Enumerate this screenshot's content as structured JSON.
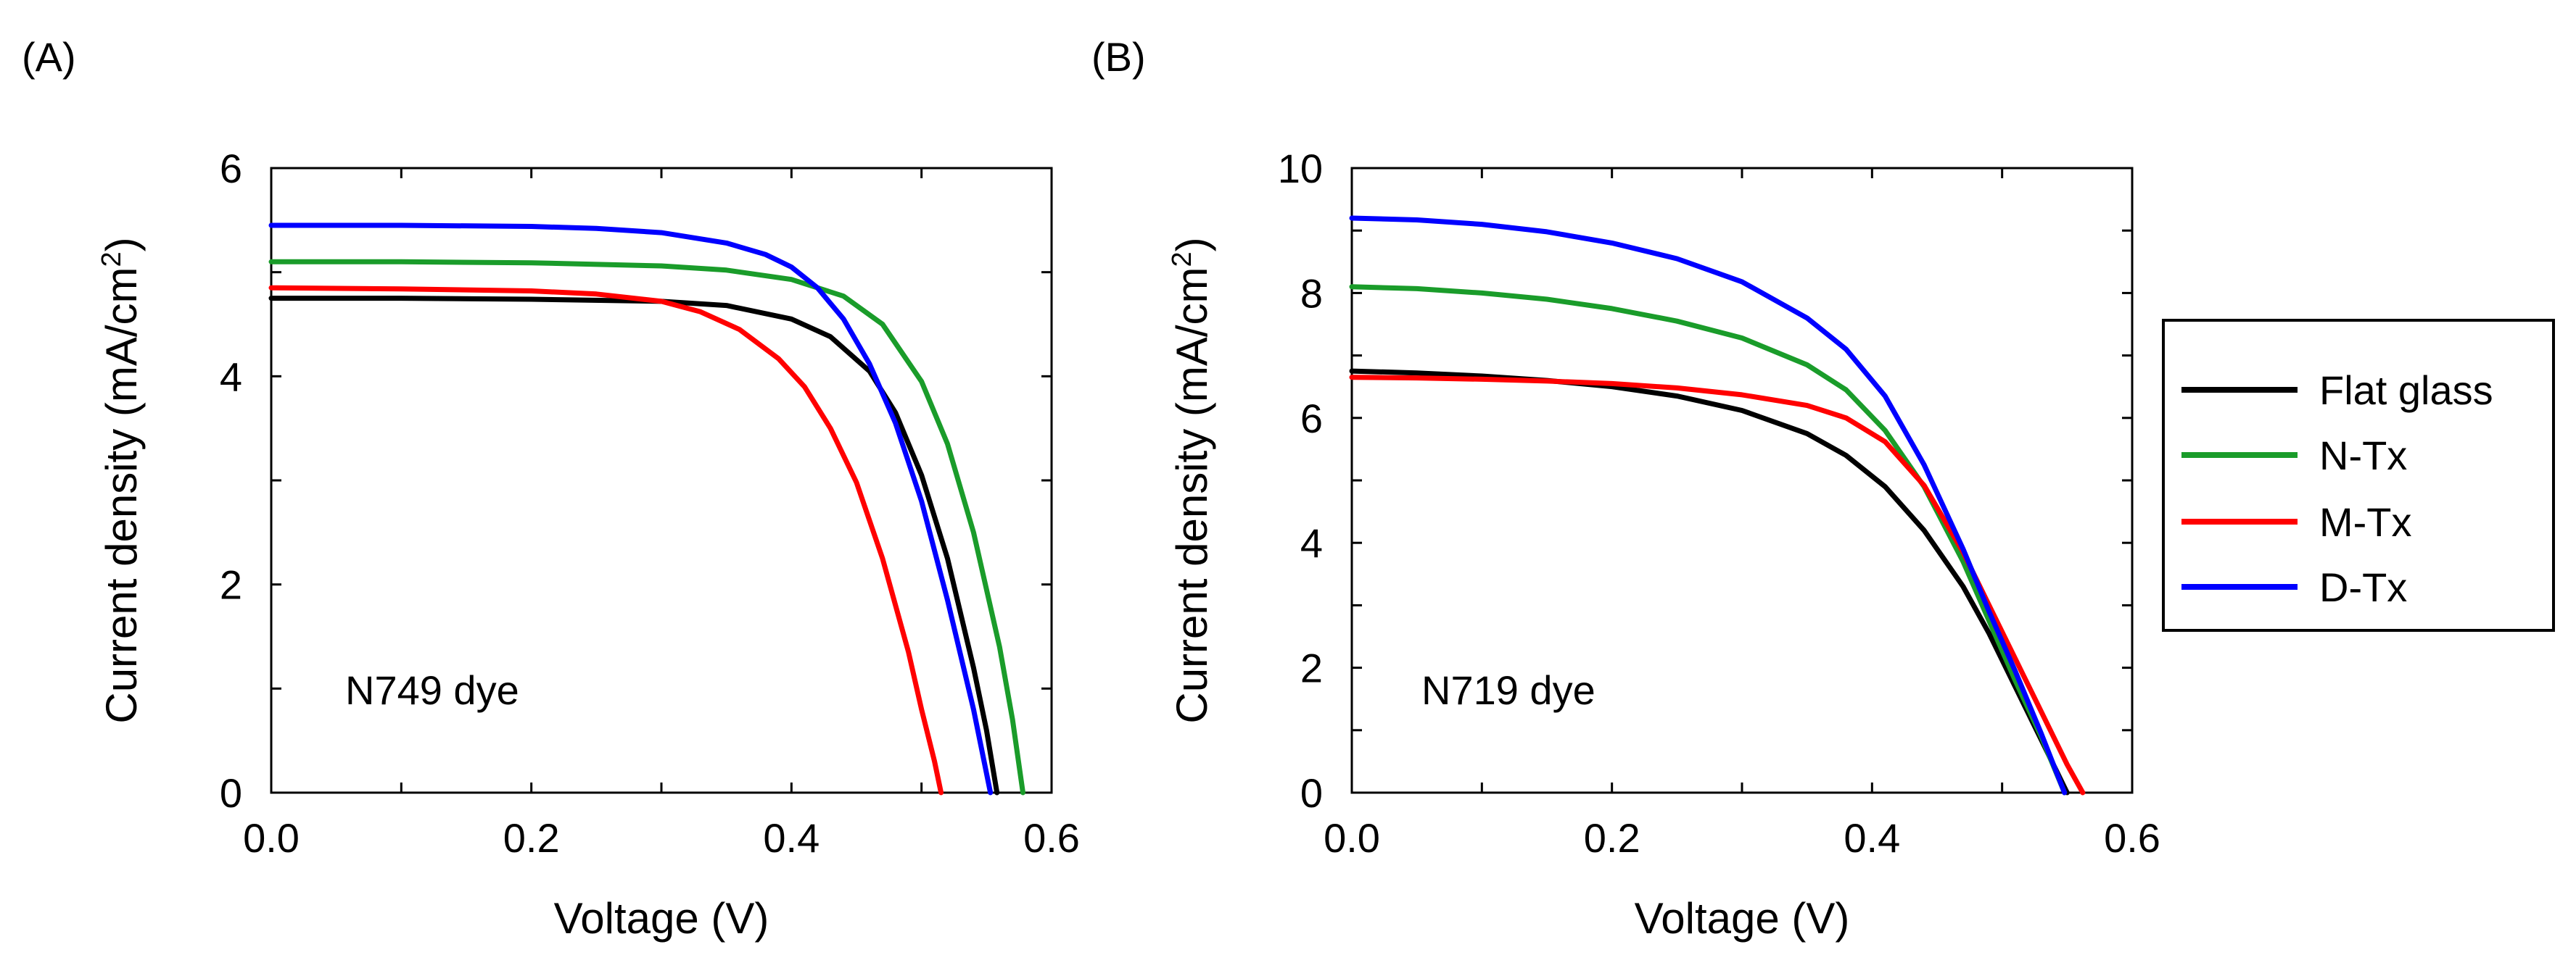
{
  "chart_data": [
    {
      "type": "line",
      "panel_label": "(A)",
      "annotation": "N749 dye",
      "xlabel": "Voltage (V)",
      "ylabel_main": "Current density (mA/cm",
      "ylabel_sup": "2",
      "ylabel_close": ")",
      "xlim": [
        0,
        0.6
      ],
      "ylim": [
        0,
        6
      ],
      "xticks": [
        0,
        0.1,
        0.2,
        0.3,
        0.4,
        0.5,
        0.6
      ],
      "xtick_labels": [
        "0.0",
        "",
        "0.2",
        "",
        "0.4",
        "",
        "0.6"
      ],
      "yticks": [
        0,
        1,
        2,
        3,
        4,
        5,
        6
      ],
      "ytick_labels": [
        "0",
        "",
        "2",
        "",
        "4",
        "",
        "6"
      ],
      "series": [
        {
          "name": "Flat glass",
          "color": "#000000",
          "x": [
            0,
            0.1,
            0.2,
            0.3,
            0.35,
            0.4,
            0.43,
            0.46,
            0.48,
            0.5,
            0.52,
            0.54,
            0.55,
            0.558
          ],
          "y": [
            4.75,
            4.75,
            4.74,
            4.72,
            4.68,
            4.55,
            4.38,
            4.05,
            3.65,
            3.05,
            2.25,
            1.2,
            0.6,
            0
          ]
        },
        {
          "name": "N-Tx",
          "color": "#1a9c2a",
          "x": [
            0,
            0.1,
            0.2,
            0.3,
            0.35,
            0.4,
            0.44,
            0.47,
            0.5,
            0.52,
            0.54,
            0.56,
            0.57,
            0.578
          ],
          "y": [
            5.1,
            5.1,
            5.09,
            5.06,
            5.02,
            4.93,
            4.77,
            4.5,
            3.95,
            3.35,
            2.5,
            1.4,
            0.7,
            0
          ]
        },
        {
          "name": "M-Tx",
          "color": "#ff0000",
          "x": [
            0,
            0.1,
            0.2,
            0.25,
            0.3,
            0.33,
            0.36,
            0.39,
            0.41,
            0.43,
            0.45,
            0.47,
            0.49,
            0.5,
            0.51,
            0.515
          ],
          "y": [
            4.85,
            4.84,
            4.82,
            4.79,
            4.72,
            4.62,
            4.45,
            4.17,
            3.9,
            3.5,
            2.98,
            2.25,
            1.35,
            0.8,
            0.3,
            0
          ]
        },
        {
          "name": "D-Tx",
          "color": "#0000ff",
          "x": [
            0,
            0.1,
            0.2,
            0.25,
            0.3,
            0.35,
            0.38,
            0.4,
            0.42,
            0.44,
            0.46,
            0.48,
            0.5,
            0.52,
            0.54,
            0.553
          ],
          "y": [
            5.45,
            5.45,
            5.44,
            5.42,
            5.38,
            5.28,
            5.17,
            5.05,
            4.85,
            4.55,
            4.12,
            3.55,
            2.8,
            1.85,
            0.8,
            0
          ]
        }
      ]
    },
    {
      "type": "line",
      "panel_label": "(B)",
      "annotation": "N719 dye",
      "xlabel": "Voltage (V)",
      "ylabel_main": "Current density (mA/cm",
      "ylabel_sup": "2",
      "ylabel_close": ")",
      "xlim": [
        0,
        0.6
      ],
      "ylim": [
        0,
        10
      ],
      "xticks": [
        0,
        0.1,
        0.2,
        0.3,
        0.4,
        0.5,
        0.6
      ],
      "xtick_labels": [
        "0.0",
        "",
        "0.2",
        "",
        "0.4",
        "",
        "0.6"
      ],
      "yticks": [
        0,
        1,
        2,
        3,
        4,
        5,
        6,
        7,
        8,
        9,
        10
      ],
      "ytick_labels": [
        "0",
        "",
        "2",
        "",
        "4",
        "",
        "6",
        "",
        "8",
        "",
        "10"
      ],
      "series": [
        {
          "name": "Flat glass",
          "color": "#000000",
          "x": [
            0,
            0.05,
            0.1,
            0.15,
            0.2,
            0.25,
            0.3,
            0.35,
            0.38,
            0.41,
            0.44,
            0.47,
            0.49,
            0.51,
            0.53,
            0.55
          ],
          "y": [
            6.75,
            6.72,
            6.67,
            6.6,
            6.5,
            6.35,
            6.12,
            5.75,
            5.4,
            4.9,
            4.2,
            3.3,
            2.55,
            1.7,
            0.85,
            0
          ]
        },
        {
          "name": "N-Tx",
          "color": "#1a9c2a",
          "x": [
            0,
            0.05,
            0.1,
            0.15,
            0.2,
            0.25,
            0.3,
            0.35,
            0.38,
            0.41,
            0.44,
            0.47,
            0.49,
            0.51,
            0.53,
            0.548
          ],
          "y": [
            8.1,
            8.07,
            8.0,
            7.9,
            7.75,
            7.55,
            7.28,
            6.85,
            6.45,
            5.8,
            4.9,
            3.7,
            2.75,
            1.8,
            0.9,
            0
          ]
        },
        {
          "name": "M-Tx",
          "color": "#ff0000",
          "x": [
            0,
            0.05,
            0.1,
            0.15,
            0.2,
            0.25,
            0.3,
            0.35,
            0.38,
            0.41,
            0.44,
            0.47,
            0.49,
            0.51,
            0.53,
            0.55,
            0.562
          ],
          "y": [
            6.65,
            6.64,
            6.62,
            6.59,
            6.55,
            6.48,
            6.37,
            6.2,
            6.0,
            5.62,
            4.92,
            3.85,
            3.0,
            2.15,
            1.3,
            0.45,
            0
          ]
        },
        {
          "name": "D-Tx",
          "color": "#0000ff",
          "x": [
            0,
            0.05,
            0.1,
            0.15,
            0.2,
            0.25,
            0.3,
            0.35,
            0.38,
            0.41,
            0.44,
            0.47,
            0.49,
            0.51,
            0.53,
            0.548
          ],
          "y": [
            9.2,
            9.17,
            9.1,
            8.98,
            8.8,
            8.55,
            8.18,
            7.6,
            7.1,
            6.35,
            5.25,
            3.9,
            2.9,
            1.95,
            0.95,
            0
          ]
        }
      ]
    }
  ],
  "legend": {
    "location": "right",
    "items": [
      {
        "label": "Flat glass",
        "color": "#000000"
      },
      {
        "label": "N-Tx",
        "color": "#1a9c2a"
      },
      {
        "label": "M-Tx",
        "color": "#ff0000"
      },
      {
        "label": "D-Tx",
        "color": "#0000ff"
      }
    ]
  }
}
